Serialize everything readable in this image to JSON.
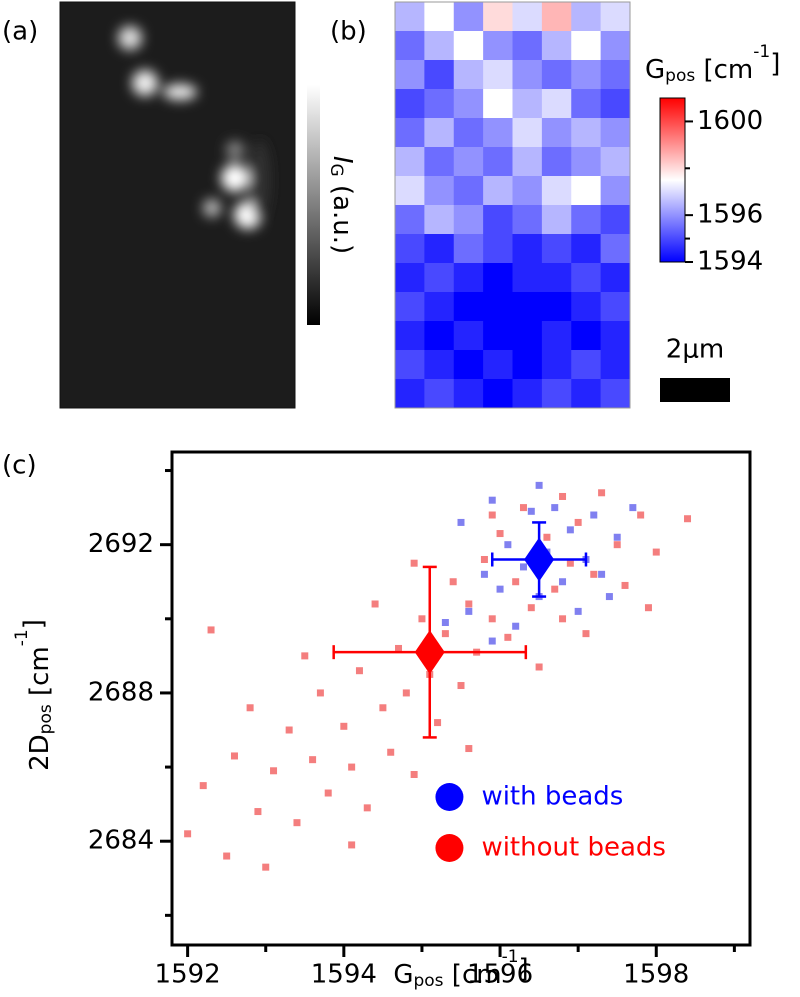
{
  "chart_data": [
    {
      "type": "image",
      "panel_label": "(a)",
      "colorbar_label": {
        "text": "I",
        "sub": "G",
        "after": " (a.u.)"
      },
      "colorbar_italic": true
    },
    {
      "type": "heatmap",
      "panel_label": "(b)",
      "colorbar_label": {
        "text": "G",
        "sub": "pos",
        "after": " [cm",
        "sup": "-1",
        "end": "]"
      },
      "clim": [
        1594,
        1601
      ],
      "cticks": [
        1594,
        1596,
        1600
      ],
      "cminor": [
        1595,
        1598
      ],
      "colormap": [
        "#0000ff",
        "#ffffff",
        "#ff0000"
      ],
      "scale_bar": "2μm",
      "values": [
        [
          1596.5,
          1597.5,
          1596.0,
          1598.0,
          1597.0,
          1598.5,
          1596.5,
          1597.0
        ],
        [
          1595.5,
          1596.5,
          1597.5,
          1596.0,
          1595.5,
          1596.5,
          1597.5,
          1596.0
        ],
        [
          1596.0,
          1595.0,
          1596.5,
          1597.0,
          1596.0,
          1595.5,
          1596.0,
          1595.5
        ],
        [
          1595.0,
          1595.5,
          1596.0,
          1597.5,
          1596.5,
          1597.0,
          1595.5,
          1595.0
        ],
        [
          1595.5,
          1596.5,
          1595.5,
          1596.0,
          1597.0,
          1596.0,
          1596.5,
          1596.0
        ],
        [
          1596.5,
          1595.5,
          1596.0,
          1595.5,
          1596.5,
          1595.5,
          1596.0,
          1596.5
        ],
        [
          1597.0,
          1596.0,
          1595.5,
          1596.5,
          1596.0,
          1597.0,
          1597.5,
          1596.0
        ],
        [
          1595.5,
          1596.5,
          1596.0,
          1595.0,
          1595.5,
          1596.5,
          1595.5,
          1595.0
        ],
        [
          1595.0,
          1594.5,
          1595.5,
          1595.0,
          1594.5,
          1595.0,
          1594.5,
          1595.5
        ],
        [
          1594.5,
          1595.0,
          1594.5,
          1594.0,
          1594.5,
          1594.5,
          1595.0,
          1594.5
        ],
        [
          1595.0,
          1594.5,
          1594.0,
          1594.0,
          1593.5,
          1594.0,
          1594.5,
          1595.0
        ],
        [
          1594.5,
          1594.0,
          1594.5,
          1593.5,
          1594.0,
          1594.5,
          1594.0,
          1594.5
        ],
        [
          1595.0,
          1594.5,
          1594.0,
          1594.5,
          1594.0,
          1594.5,
          1595.0,
          1594.5
        ],
        [
          1594.5,
          1595.0,
          1594.5,
          1594.0,
          1594.5,
          1595.0,
          1594.5,
          1595.0
        ]
      ]
    },
    {
      "type": "scatter",
      "panel_label": "(c)",
      "xlabel": {
        "text": "G",
        "sub": "pos",
        "after": " [cm",
        "sup": "-1",
        "end": "]"
      },
      "ylabel": {
        "text": "2D",
        "sub": "pos",
        "after": " [cm",
        "sup": "-1",
        "end": "]"
      },
      "xlim": [
        1591.8,
        1599.2
      ],
      "xticks": [
        1592,
        1594,
        1596,
        1598
      ],
      "xminor": [
        1593,
        1595,
        1597,
        1599
      ],
      "ylim": [
        2681.2,
        2694.5
      ],
      "yticks": [
        2684,
        2688,
        2692
      ],
      "yminor": [
        2682,
        2686,
        2690,
        2694
      ],
      "legend": "lower right",
      "series": [
        {
          "name": "with beads",
          "color": "#8080f0",
          "mean_color": "#0000ff",
          "mean_x": 1596.5,
          "mean_y": 2691.6,
          "xerr": 0.6,
          "yerr": 1.0,
          "x": [
            1595.6,
            1595.8,
            1595.9,
            1596.0,
            1596.1,
            1596.2,
            1596.3,
            1596.4,
            1596.5,
            1596.6,
            1596.7,
            1596.8,
            1596.9,
            1597.0,
            1597.1,
            1597.2,
            1597.3,
            1597.5,
            1597.7,
            1595.3,
            1595.5,
            1596.5,
            1597.4,
            1595.9
          ],
          "y": [
            2690.2,
            2691.2,
            2689.4,
            2690.8,
            2692.0,
            2689.8,
            2691.4,
            2692.9,
            2690.6,
            2691.8,
            2693.0,
            2691.0,
            2692.4,
            2690.2,
            2691.6,
            2692.8,
            2691.2,
            2692.2,
            2693.0,
            2689.9,
            2692.6,
            2693.6,
            2690.6,
            2693.2
          ]
        },
        {
          "name": "without beads",
          "color": "#f47e7e",
          "mean_color": "#ff0000",
          "mean_x": 1595.1,
          "mean_y": 2689.1,
          "xerr": 1.23,
          "yerr": 2.3,
          "x": [
            1592.0,
            1592.2,
            1592.5,
            1592.6,
            1592.9,
            1593.1,
            1593.3,
            1593.4,
            1593.6,
            1593.7,
            1593.8,
            1594.0,
            1594.1,
            1594.2,
            1594.3,
            1594.5,
            1594.6,
            1594.7,
            1594.8,
            1594.9,
            1595.0,
            1595.1,
            1595.2,
            1595.3,
            1595.4,
            1595.5,
            1595.6,
            1595.7,
            1595.8,
            1595.9,
            1596.0,
            1596.1,
            1596.2,
            1596.3,
            1596.4,
            1596.6,
            1596.7,
            1596.8,
            1596.9,
            1597.0,
            1597.2,
            1597.3,
            1597.5,
            1597.6,
            1597.8,
            1598.0,
            1598.4,
            1592.3,
            1593.0,
            1594.4,
            1595.6,
            1596.5,
            1597.1,
            1593.5,
            1592.8,
            1594.9,
            1595.9,
            1596.8,
            1597.9,
            1594.1
          ],
          "y": [
            2684.2,
            2685.5,
            2683.6,
            2686.3,
            2684.8,
            2685.9,
            2687.0,
            2684.5,
            2686.2,
            2688.0,
            2685.3,
            2687.1,
            2686.0,
            2688.6,
            2684.9,
            2687.6,
            2686.4,
            2689.2,
            2688.0,
            2685.8,
            2690.0,
            2688.5,
            2687.2,
            2689.6,
            2691.0,
            2688.2,
            2690.4,
            2689.1,
            2691.6,
            2690.0,
            2692.3,
            2689.5,
            2691.0,
            2693.0,
            2690.3,
            2692.2,
            2690.8,
            2693.3,
            2691.5,
            2692.6,
            2691.2,
            2693.4,
            2692.0,
            2690.9,
            2692.8,
            2691.8,
            2692.7,
            2689.7,
            2683.3,
            2690.4,
            2686.5,
            2688.7,
            2689.6,
            2689.0,
            2687.6,
            2691.5,
            2692.8,
            2690.0,
            2690.3,
            2683.9
          ]
        }
      ]
    }
  ]
}
